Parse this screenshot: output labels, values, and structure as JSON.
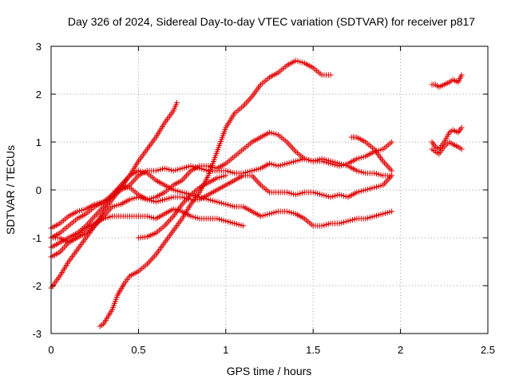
{
  "chart_data": {
    "type": "scatter",
    "title": "Day 326 of 2024, Sidereal Day-to-day VTEC variation (SDTVAR) for receiver p817",
    "xlabel": "GPS time / hours",
    "ylabel": "SDTVAR / TECUs",
    "xlim": [
      0,
      2.5
    ],
    "ylim": [
      -3,
      3
    ],
    "xticks": [
      0,
      0.5,
      1,
      1.5,
      2,
      2.5
    ],
    "xtick_labels": [
      "0",
      "0.5",
      "1",
      "1.5",
      "2",
      "2.5"
    ],
    "yticks": [
      -3,
      -2,
      -1,
      0,
      1,
      2,
      3
    ],
    "ytick_labels": [
      "-3",
      "-2",
      "-1",
      "0",
      "1",
      "2",
      "3"
    ],
    "grid": true,
    "marker": "+",
    "color": "#e00000",
    "series": [
      {
        "name": "track-1",
        "points": [
          [
            0.0,
            -2.05
          ],
          [
            0.05,
            -1.8
          ],
          [
            0.1,
            -1.5
          ],
          [
            0.15,
            -1.25
          ],
          [
            0.2,
            -1.0
          ],
          [
            0.25,
            -0.75
          ],
          [
            0.3,
            -0.45
          ],
          [
            0.35,
            -0.2
          ],
          [
            0.4,
            0.05
          ],
          [
            0.45,
            0.3
          ],
          [
            0.5,
            0.6
          ],
          [
            0.55,
            0.85
          ],
          [
            0.6,
            1.1
          ],
          [
            0.65,
            1.4
          ],
          [
            0.7,
            1.65
          ],
          [
            0.72,
            1.82
          ]
        ]
      },
      {
        "name": "track-2",
        "points": [
          [
            0.28,
            -2.85
          ],
          [
            0.3,
            -2.8
          ],
          [
            0.35,
            -2.5
          ],
          [
            0.38,
            -2.2
          ],
          [
            0.42,
            -1.95
          ],
          [
            0.45,
            -1.8
          ],
          [
            0.5,
            -1.7
          ],
          [
            0.55,
            -1.55
          ],
          [
            0.6,
            -1.35
          ],
          [
            0.65,
            -1.1
          ],
          [
            0.7,
            -0.85
          ],
          [
            0.75,
            -0.6
          ],
          [
            0.8,
            -0.3
          ],
          [
            0.85,
            -0.05
          ],
          [
            0.9,
            0.3
          ],
          [
            0.95,
            0.8
          ],
          [
            1.0,
            1.3
          ],
          [
            1.05,
            1.6
          ],
          [
            1.1,
            1.75
          ],
          [
            1.15,
            1.95
          ],
          [
            1.2,
            2.2
          ],
          [
            1.25,
            2.35
          ],
          [
            1.3,
            2.45
          ],
          [
            1.35,
            2.6
          ],
          [
            1.4,
            2.7
          ],
          [
            1.45,
            2.65
          ],
          [
            1.5,
            2.55
          ],
          [
            1.55,
            2.4
          ],
          [
            1.6,
            2.4
          ]
        ]
      },
      {
        "name": "track-3",
        "points": [
          [
            0.0,
            -0.8
          ],
          [
            0.05,
            -0.7
          ],
          [
            0.1,
            -0.55
          ],
          [
            0.15,
            -0.45
          ],
          [
            0.2,
            -0.4
          ],
          [
            0.25,
            -0.3
          ],
          [
            0.3,
            -0.25
          ],
          [
            0.35,
            -0.15
          ],
          [
            0.4,
            0.0
          ],
          [
            0.45,
            0.1
          ],
          [
            0.5,
            0.3
          ],
          [
            0.55,
            0.4
          ],
          [
            0.6,
            0.4
          ],
          [
            0.65,
            0.45
          ],
          [
            0.7,
            0.4
          ],
          [
            0.75,
            0.45
          ],
          [
            0.8,
            0.5
          ],
          [
            0.85,
            0.45
          ],
          [
            0.9,
            0.4
          ],
          [
            0.95,
            0.4
          ],
          [
            1.0,
            0.4
          ],
          [
            1.05,
            0.35
          ],
          [
            1.1,
            0.35
          ],
          [
            1.15,
            0.4
          ],
          [
            1.2,
            0.45
          ],
          [
            1.25,
            0.55
          ],
          [
            1.3,
            0.5
          ],
          [
            1.35,
            0.55
          ],
          [
            1.4,
            0.6
          ],
          [
            1.45,
            0.65
          ],
          [
            1.5,
            0.6
          ],
          [
            1.55,
            0.6
          ],
          [
            1.6,
            0.55
          ],
          [
            1.65,
            0.5
          ],
          [
            1.7,
            0.55
          ],
          [
            1.75,
            0.65
          ],
          [
            1.8,
            0.7
          ],
          [
            1.85,
            0.8
          ],
          [
            1.9,
            0.85
          ],
          [
            1.95,
            1.0
          ]
        ]
      },
      {
        "name": "track-4",
        "points": [
          [
            0.0,
            -1.0
          ],
          [
            0.05,
            -0.9
          ],
          [
            0.1,
            -0.75
          ],
          [
            0.15,
            -0.6
          ],
          [
            0.2,
            -0.5
          ],
          [
            0.25,
            -0.35
          ],
          [
            0.3,
            -0.25
          ],
          [
            0.35,
            -0.1
          ],
          [
            0.4,
            0.05
          ],
          [
            0.45,
            0.05
          ],
          [
            0.5,
            -0.1
          ],
          [
            0.55,
            -0.2
          ],
          [
            0.6,
            -0.15
          ],
          [
            0.65,
            -0.05
          ],
          [
            0.7,
            0.1
          ],
          [
            0.75,
            0.2
          ],
          [
            0.8,
            0.4
          ],
          [
            0.85,
            0.5
          ],
          [
            0.9,
            0.5
          ],
          [
            0.95,
            0.45
          ],
          [
            1.0,
            0.55
          ],
          [
            1.05,
            0.7
          ],
          [
            1.1,
            0.85
          ],
          [
            1.15,
            1.0
          ],
          [
            1.2,
            1.1
          ],
          [
            1.25,
            1.2
          ],
          [
            1.3,
            1.15
          ],
          [
            1.35,
            1.0
          ],
          [
            1.4,
            0.8
          ],
          [
            1.45,
            0.65
          ],
          [
            1.5,
            0.6
          ],
          [
            1.55,
            0.65
          ],
          [
            1.6,
            0.6
          ],
          [
            1.65,
            0.55
          ],
          [
            1.7,
            0.5
          ],
          [
            1.75,
            0.4
          ],
          [
            1.8,
            0.35
          ],
          [
            1.85,
            0.35
          ],
          [
            1.9,
            0.3
          ],
          [
            1.95,
            0.3
          ]
        ]
      },
      {
        "name": "track-5",
        "points": [
          [
            0.0,
            -1.2
          ],
          [
            0.05,
            -1.1
          ],
          [
            0.1,
            -1.0
          ],
          [
            0.15,
            -0.9
          ],
          [
            0.2,
            -0.75
          ],
          [
            0.25,
            -0.55
          ],
          [
            0.3,
            -0.35
          ],
          [
            0.35,
            -0.1
          ],
          [
            0.4,
            0.1
          ],
          [
            0.45,
            0.3
          ],
          [
            0.5,
            0.4
          ],
          [
            0.55,
            0.35
          ],
          [
            0.6,
            0.2
          ],
          [
            0.65,
            0.1
          ],
          [
            0.7,
            0.0
          ],
          [
            0.75,
            -0.05
          ],
          [
            0.8,
            -0.1
          ],
          [
            0.85,
            -0.15
          ],
          [
            0.9,
            -0.2
          ],
          [
            0.95,
            -0.25
          ],
          [
            1.0,
            -0.3
          ],
          [
            1.05,
            -0.35
          ],
          [
            1.1,
            -0.35
          ],
          [
            1.15,
            -0.45
          ],
          [
            1.2,
            -0.55
          ],
          [
            1.25,
            -0.5
          ],
          [
            1.3,
            -0.45
          ],
          [
            1.35,
            -0.45
          ],
          [
            1.4,
            -0.5
          ],
          [
            1.45,
            -0.6
          ],
          [
            1.5,
            -0.75
          ],
          [
            1.55,
            -0.75
          ],
          [
            1.6,
            -0.7
          ],
          [
            1.65,
            -0.7
          ],
          [
            1.7,
            -0.65
          ],
          [
            1.75,
            -0.6
          ],
          [
            1.8,
            -0.6
          ],
          [
            1.85,
            -0.55
          ],
          [
            1.9,
            -0.5
          ],
          [
            1.95,
            -0.45
          ]
        ]
      },
      {
        "name": "track-6",
        "points": [
          [
            0.0,
            -1.4
          ],
          [
            0.05,
            -1.3
          ],
          [
            0.1,
            -1.1
          ],
          [
            0.15,
            -0.95
          ],
          [
            0.2,
            -0.8
          ],
          [
            0.25,
            -0.7
          ],
          [
            0.3,
            -0.6
          ],
          [
            0.35,
            -0.55
          ],
          [
            0.4,
            -0.55
          ],
          [
            0.45,
            -0.55
          ],
          [
            0.5,
            -0.55
          ],
          [
            0.55,
            -0.55
          ],
          [
            0.6,
            -0.6
          ],
          [
            0.65,
            -0.5
          ],
          [
            0.7,
            -0.4
          ],
          [
            0.75,
            -0.45
          ],
          [
            0.8,
            -0.55
          ],
          [
            0.85,
            -0.6
          ],
          [
            0.9,
            -0.6
          ],
          [
            0.95,
            -0.6
          ],
          [
            1.0,
            -0.65
          ],
          [
            1.05,
            -0.7
          ],
          [
            1.1,
            -0.75
          ]
        ]
      },
      {
        "name": "track-7",
        "points": [
          [
            0.0,
            -1.0
          ],
          [
            0.05,
            -1.0
          ],
          [
            0.1,
            -1.1
          ],
          [
            0.15,
            -1.0
          ],
          [
            0.2,
            -0.9
          ],
          [
            0.25,
            -0.75
          ],
          [
            0.3,
            -0.55
          ],
          [
            0.35,
            -0.35
          ],
          [
            0.4,
            -0.3
          ],
          [
            0.45,
            -0.2
          ],
          [
            0.5,
            -0.15
          ],
          [
            0.55,
            -0.2
          ],
          [
            0.6,
            -0.25
          ],
          [
            0.65,
            -0.2
          ],
          [
            0.7,
            -0.15
          ],
          [
            0.75,
            -0.15
          ],
          [
            0.8,
            -0.2
          ],
          [
            0.85,
            -0.2
          ],
          [
            0.9,
            -0.1
          ],
          [
            0.95,
            0.0
          ],
          [
            1.0,
            0.1
          ],
          [
            1.05,
            0.2
          ],
          [
            1.1,
            0.3
          ],
          [
            1.15,
            0.3
          ],
          [
            1.2,
            0.1
          ],
          [
            1.25,
            -0.05
          ],
          [
            1.3,
            -0.05
          ],
          [
            1.35,
            -0.05
          ],
          [
            1.4,
            -0.1
          ],
          [
            1.45,
            -0.05
          ],
          [
            1.5,
            -0.05
          ],
          [
            1.55,
            -0.1
          ],
          [
            1.6,
            -0.15
          ],
          [
            1.65,
            -0.1
          ],
          [
            1.7,
            -0.15
          ],
          [
            1.75,
            -0.05
          ],
          [
            1.8,
            0.0
          ],
          [
            1.85,
            0.05
          ],
          [
            1.9,
            0.1
          ],
          [
            1.95,
            0.3
          ]
        ]
      },
      {
        "name": "track-8",
        "points": [
          [
            0.5,
            -1.0
          ],
          [
            0.55,
            -0.98
          ],
          [
            0.6,
            -0.9
          ],
          [
            0.65,
            -0.75
          ],
          [
            0.7,
            -0.55
          ],
          [
            0.75,
            -0.3
          ],
          [
            0.8,
            -0.1
          ],
          [
            0.85,
            0.05
          ],
          [
            0.9,
            0.15
          ],
          [
            0.95,
            0.25
          ],
          [
            1.0,
            0.3
          ]
        ]
      },
      {
        "name": "track-9",
        "points": [
          [
            1.72,
            1.1
          ],
          [
            1.75,
            1.1
          ],
          [
            1.8,
            1.0
          ],
          [
            1.85,
            0.85
          ],
          [
            1.9,
            0.6
          ],
          [
            1.95,
            0.4
          ]
        ]
      },
      {
        "name": "track-10",
        "points": [
          [
            2.18,
            2.2
          ],
          [
            2.2,
            2.2
          ],
          [
            2.22,
            2.15
          ],
          [
            2.25,
            2.2
          ],
          [
            2.28,
            2.25
          ],
          [
            2.3,
            2.3
          ],
          [
            2.33,
            2.25
          ],
          [
            2.35,
            2.4
          ]
        ]
      },
      {
        "name": "track-11",
        "points": [
          [
            2.18,
            1.0
          ],
          [
            2.2,
            0.9
          ],
          [
            2.22,
            0.85
          ],
          [
            2.25,
            1.0
          ],
          [
            2.28,
            1.2
          ],
          [
            2.3,
            1.25
          ],
          [
            2.33,
            1.2
          ],
          [
            2.35,
            1.3
          ]
        ]
      },
      {
        "name": "track-12",
        "points": [
          [
            2.18,
            0.85
          ],
          [
            2.2,
            0.8
          ],
          [
            2.22,
            0.75
          ],
          [
            2.25,
            0.9
          ],
          [
            2.28,
            1.0
          ],
          [
            2.3,
            0.95
          ],
          [
            2.33,
            0.9
          ],
          [
            2.35,
            0.85
          ]
        ]
      }
    ]
  }
}
